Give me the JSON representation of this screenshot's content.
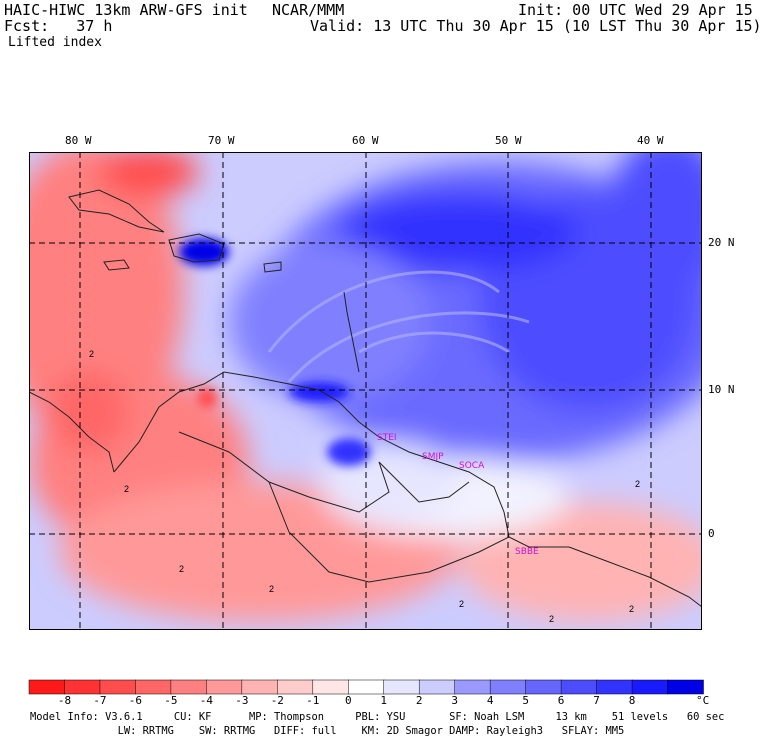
{
  "header": {
    "model_title": "HAIC-HIWC 13km ARW-GFS init",
    "org": "NCAR/MMM",
    "init": "Init: 00 UTC Wed 29 Apr 15",
    "fcst": "Fcst:   37 h",
    "valid": "Valid: 13 UTC Thu 30 Apr 15 (10 LST Thu 30 Apr 15)",
    "field": "Lifted index"
  },
  "map": {
    "lon_labels": [
      "80 W",
      "70 W",
      "60 W",
      "50 W",
      "40 W"
    ],
    "lat_labels": [
      "20 N",
      "10 N",
      "0"
    ],
    "contour_labels": [
      "2",
      "2",
      "2",
      "2",
      "2",
      "2",
      "2",
      "2"
    ],
    "station_labels": [
      "STEI",
      "SMJP",
      "SOCA",
      "SBBE"
    ],
    "station_color": "#d010d0"
  },
  "colorbar": {
    "tick_labels": [
      "-8",
      "-7",
      "-6",
      "-5",
      "-4",
      "-3",
      "-2",
      "-1",
      "0",
      "1",
      "2",
      "3",
      "4",
      "5",
      "6",
      "7",
      "8"
    ],
    "unit": "°C",
    "colors": [
      "#ff1a1a",
      "#ff3333",
      "#ff4d4d",
      "#ff6666",
      "#ff8080",
      "#ff9999",
      "#ffb3b3",
      "#ffcccc",
      "#ffe6e6",
      "#ffffff",
      "#e6e6ff",
      "#ccccff",
      "#9999ff",
      "#8080ff",
      "#6666ff",
      "#4d4dff",
      "#3333ff",
      "#1a1aff",
      "#0000e6"
    ]
  },
  "footer": {
    "line1": "Model Info: V3.6.1     CU: KF      MP: Thompson     PBL: YSU       SF: Noah LSM     13 km    51 levels   60 sec",
    "line2": "              LW: RRTMG    SW: RRTMG   DIFF: full    KM: 2D Smagor DAMP: Rayleigh3   SFLAY: MM5"
  }
}
